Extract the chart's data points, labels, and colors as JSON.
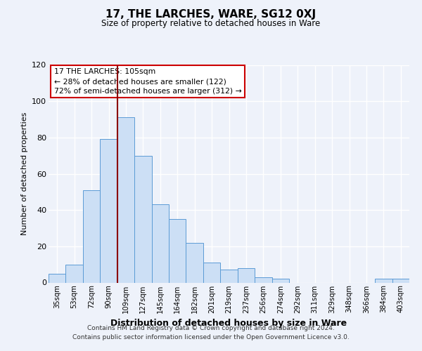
{
  "title": "17, THE LARCHES, WARE, SG12 0XJ",
  "subtitle": "Size of property relative to detached houses in Ware",
  "xlabel": "Distribution of detached houses by size in Ware",
  "ylabel": "Number of detached properties",
  "bar_labels": [
    "35sqm",
    "53sqm",
    "72sqm",
    "90sqm",
    "109sqm",
    "127sqm",
    "145sqm",
    "164sqm",
    "182sqm",
    "201sqm",
    "219sqm",
    "237sqm",
    "256sqm",
    "274sqm",
    "292sqm",
    "311sqm",
    "329sqm",
    "348sqm",
    "366sqm",
    "384sqm",
    "403sqm"
  ],
  "bar_values": [
    5,
    10,
    51,
    79,
    91,
    70,
    43,
    35,
    22,
    11,
    7,
    8,
    3,
    2,
    0,
    0,
    0,
    0,
    0,
    2,
    2
  ],
  "bar_color": "#ccdff5",
  "bar_edge_color": "#5b9bd5",
  "ylim": [
    0,
    120
  ],
  "yticks": [
    0,
    20,
    40,
    60,
    80,
    100,
    120
  ],
  "vline_x_index": 3.5,
  "vline_color": "#8b0000",
  "annotation_title": "17 THE LARCHES: 105sqm",
  "annotation_line1": "← 28% of detached houses are smaller (122)",
  "annotation_line2": "72% of semi-detached houses are larger (312) →",
  "annotation_box_facecolor": "#ffffff",
  "annotation_box_edgecolor": "#cc0000",
  "footer1": "Contains HM Land Registry data © Crown copyright and database right 2024.",
  "footer2": "Contains public sector information licensed under the Open Government Licence v3.0.",
  "background_color": "#eef2fa",
  "plot_background": "#eef2fa",
  "grid_color": "#d0d8e8"
}
